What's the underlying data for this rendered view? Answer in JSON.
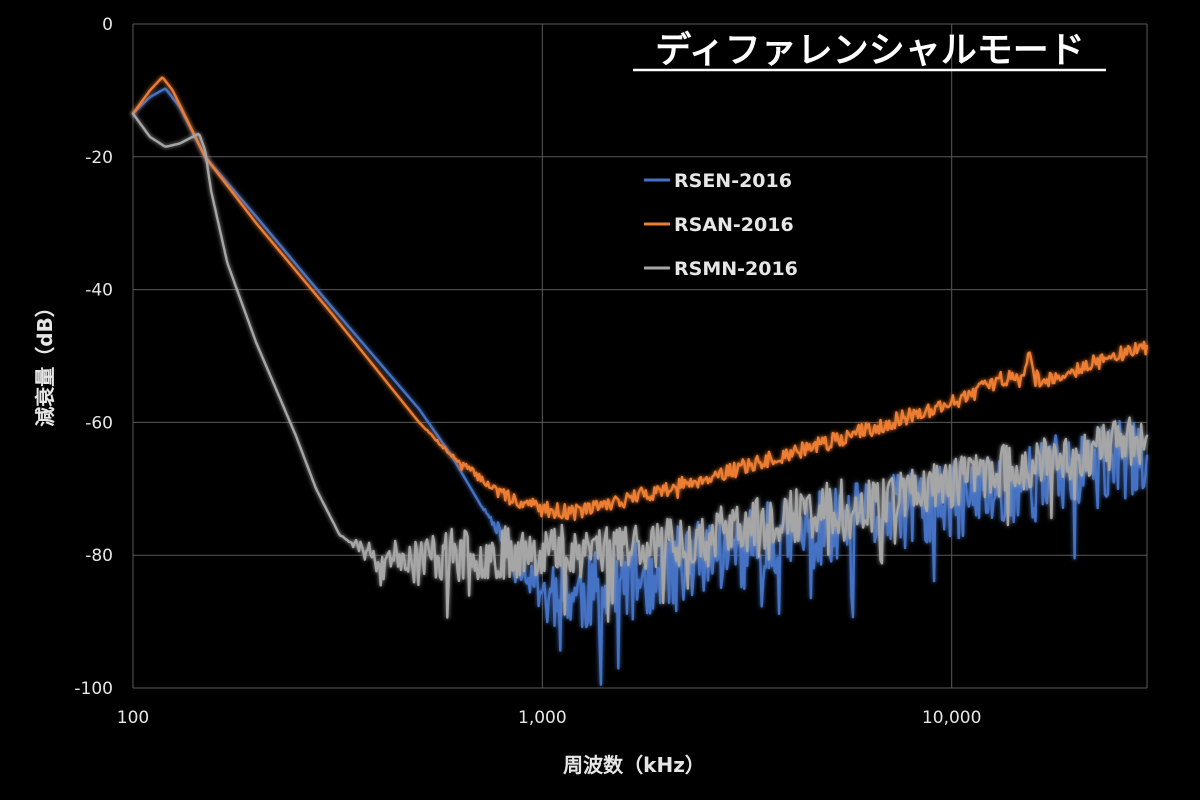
{
  "chart_data": {
    "type": "line",
    "title": "ディファレンシャルモード",
    "xlabel": "周波数（kHz）",
    "ylabel": "減衰量（dB）",
    "x_scale": "log",
    "xlim": [
      100,
      30000
    ],
    "ylim": [
      -100,
      0
    ],
    "x_ticks": [
      100,
      1000,
      10000
    ],
    "x_tick_labels": [
      "100",
      "1,000",
      "10,000"
    ],
    "y_ticks": [
      0,
      -20,
      -40,
      -60,
      -80,
      -100
    ],
    "y_tick_labels": [
      "0",
      "-20",
      "-40",
      "-60",
      "-80",
      "-100"
    ],
    "grid": true,
    "legend_position": "upper-middle-right",
    "series": [
      {
        "name": "RSEN-2016",
        "color": "#4472C4",
        "noise": {
          "amp": 6,
          "spike_prob": 0.12,
          "spike_amp": 10,
          "from": 700,
          "to": 30000,
          "seed": 11
        },
        "points": [
          [
            100,
            -13.5
          ],
          [
            110,
            -11
          ],
          [
            120,
            -9.7
          ],
          [
            130,
            -12.5
          ],
          [
            150,
            -20
          ],
          [
            200,
            -29
          ],
          [
            300,
            -42
          ],
          [
            500,
            -58
          ],
          [
            600,
            -65
          ],
          [
            700,
            -72
          ],
          [
            800,
            -77
          ],
          [
            900,
            -82
          ],
          [
            1000,
            -85
          ],
          [
            1200,
            -86
          ],
          [
            1500,
            -85
          ],
          [
            2000,
            -82
          ],
          [
            3000,
            -79
          ],
          [
            5000,
            -76
          ],
          [
            10000,
            -72
          ],
          [
            20000,
            -67
          ],
          [
            30000,
            -65
          ]
        ]
      },
      {
        "name": "RSAN-2016",
        "color": "#ED7D31",
        "noise": {
          "amp": 1.2,
          "spike_prob": 0.03,
          "spike_amp": 2,
          "from": 500,
          "to": 30000,
          "seed": 7
        },
        "points": [
          [
            100,
            -13.5
          ],
          [
            110,
            -10
          ],
          [
            118,
            -8
          ],
          [
            125,
            -10
          ],
          [
            150,
            -20
          ],
          [
            200,
            -30
          ],
          [
            300,
            -43
          ],
          [
            500,
            -60
          ],
          [
            600,
            -65
          ],
          [
            800,
            -71
          ],
          [
            1000,
            -73
          ],
          [
            1200,
            -73.5
          ],
          [
            1500,
            -72
          ],
          [
            2000,
            -70
          ],
          [
            3000,
            -67
          ],
          [
            5000,
            -63
          ],
          [
            10000,
            -57
          ],
          [
            15000,
            -52
          ],
          [
            15500,
            -50
          ],
          [
            16500,
            -54
          ],
          [
            20000,
            -52
          ],
          [
            30000,
            -48.5
          ]
        ]
      },
      {
        "name": "RSMN-2016",
        "color": "#A6A6A6",
        "noise": {
          "amp": 4,
          "spike_prob": 0.08,
          "spike_amp": 9,
          "from": 320,
          "to": 30000,
          "seed": 23
        },
        "points": [
          [
            100,
            -13.5
          ],
          [
            110,
            -17
          ],
          [
            120,
            -18.5
          ],
          [
            130,
            -18
          ],
          [
            145,
            -16.5
          ],
          [
            150,
            -19
          ],
          [
            155,
            -25
          ],
          [
            170,
            -36
          ],
          [
            200,
            -48
          ],
          [
            250,
            -62
          ],
          [
            280,
            -70
          ],
          [
            320,
            -77
          ],
          [
            400,
            -80
          ],
          [
            500,
            -80
          ],
          [
            700,
            -80
          ],
          [
            1000,
            -79
          ],
          [
            2000,
            -78
          ],
          [
            3000,
            -76
          ],
          [
            5000,
            -73
          ],
          [
            10000,
            -69
          ],
          [
            20000,
            -65
          ],
          [
            30000,
            -62
          ]
        ]
      }
    ]
  }
}
